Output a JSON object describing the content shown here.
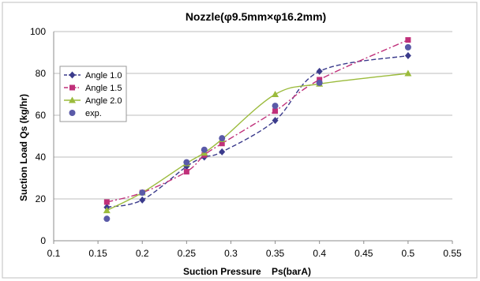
{
  "chart_data": {
    "type": "line",
    "title": "Nozzle(φ9.5mm×φ16.2mm)",
    "xlabel": "Suction Pressure    Ps(barA)",
    "ylabel": "Suction Load Qs (kg/hr)",
    "xlim": [
      0.1,
      0.55
    ],
    "ylim": [
      0,
      100
    ],
    "x_ticks": [
      0.1,
      0.15,
      0.2,
      0.25,
      0.3,
      0.35,
      0.4,
      0.45,
      0.5,
      0.55
    ],
    "x_tick_labels": [
      "0.1",
      "0.15",
      "0.2",
      "0.25",
      "0.3",
      "0.35",
      "0.4",
      "0.45",
      "0.5",
      "0.55"
    ],
    "y_ticks": [
      0,
      20,
      40,
      60,
      80,
      100
    ],
    "y_tick_labels": [
      "0",
      "20",
      "40",
      "60",
      "80",
      "100"
    ],
    "grid": "horizontal",
    "legend_position": "top-left",
    "series": [
      {
        "name": "Angle 1.0",
        "color": "#3b3b8c",
        "line": "dashed",
        "marker": "diamond",
        "x": [
          0.16,
          0.2,
          0.25,
          0.27,
          0.29,
          0.35,
          0.4,
          0.5
        ],
        "y": [
          16,
          19.5,
          35.5,
          40,
          42.5,
          57.5,
          81,
          88.5
        ]
      },
      {
        "name": "Angle 1.5",
        "color": "#c0307a",
        "line": "dashdot",
        "marker": "square",
        "x": [
          0.16,
          0.2,
          0.25,
          0.27,
          0.29,
          0.35,
          0.4,
          0.5
        ],
        "y": [
          18.5,
          23,
          33,
          41,
          46.5,
          62,
          77,
          96
        ]
      },
      {
        "name": "Angle 2.0",
        "color": "#9bbb3c",
        "line": "solid",
        "marker": "triangle",
        "x": [
          0.16,
          0.2,
          0.25,
          0.27,
          0.29,
          0.35,
          0.4,
          0.5
        ],
        "y": [
          14.5,
          23,
          37,
          42,
          48.5,
          70,
          75,
          80
        ]
      },
      {
        "name": "exp.",
        "color": "#5a5aa8",
        "line": "none",
        "marker": "circle",
        "x": [
          0.16,
          0.2,
          0.25,
          0.27,
          0.29,
          0.35,
          0.4,
          0.5
        ],
        "y": [
          10.5,
          23,
          37.5,
          43.5,
          49,
          64.5,
          75.5,
          92.5
        ]
      }
    ]
  }
}
